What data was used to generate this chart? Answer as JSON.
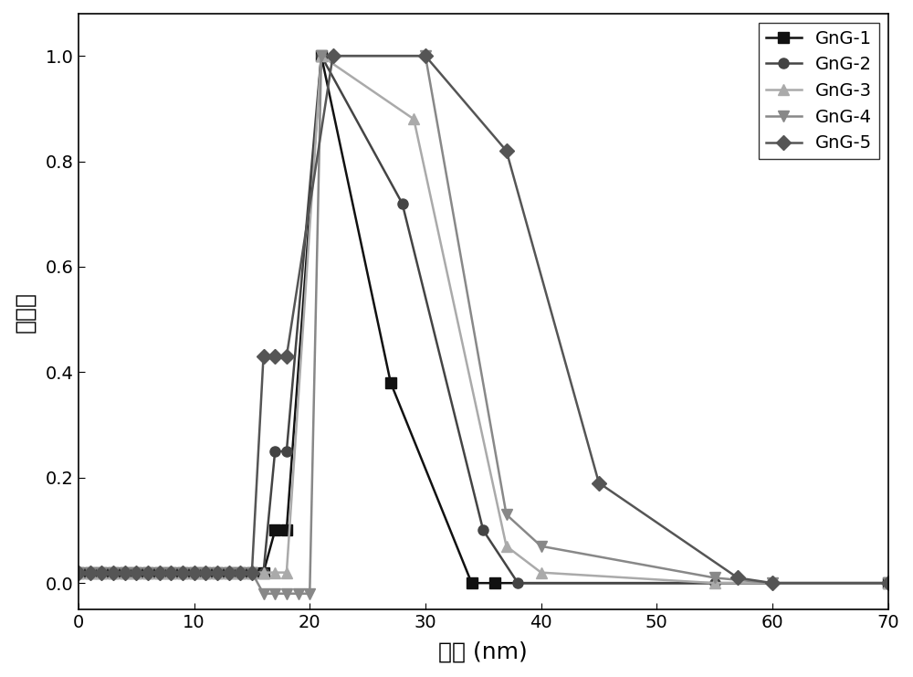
{
  "title": "",
  "xlabel": "半径 (nm)",
  "ylabel": "相对値",
  "xlim": [
    0,
    70
  ],
  "ylim": [
    -0.05,
    1.08
  ],
  "xticks": [
    0,
    10,
    20,
    30,
    40,
    50,
    60,
    70
  ],
  "yticks": [
    0.0,
    0.2,
    0.4,
    0.6,
    0.8,
    1.0
  ],
  "series": [
    {
      "name": "GnG-1",
      "color": "#111111",
      "marker": "s",
      "markersize": 8,
      "linewidth": 1.8,
      "x": [
        0,
        1,
        2,
        3,
        4,
        5,
        6,
        7,
        8,
        9,
        10,
        11,
        12,
        13,
        14,
        15,
        16,
        17,
        18,
        21,
        27,
        34,
        36,
        70
      ],
      "y": [
        0.02,
        0.02,
        0.02,
        0.02,
        0.02,
        0.02,
        0.02,
        0.02,
        0.02,
        0.02,
        0.02,
        0.02,
        0.02,
        0.02,
        0.02,
        0.02,
        0.02,
        0.1,
        0.1,
        1.0,
        0.38,
        0.0,
        0.0,
        0.0
      ]
    },
    {
      "name": "GnG-2",
      "color": "#444444",
      "marker": "o",
      "markersize": 8,
      "linewidth": 1.8,
      "x": [
        0,
        1,
        2,
        3,
        4,
        5,
        6,
        7,
        8,
        9,
        10,
        11,
        12,
        13,
        14,
        15,
        16,
        17,
        18,
        21,
        28,
        35,
        38,
        55,
        70
      ],
      "y": [
        0.02,
        0.02,
        0.02,
        0.02,
        0.02,
        0.02,
        0.02,
        0.02,
        0.02,
        0.02,
        0.02,
        0.02,
        0.02,
        0.02,
        0.02,
        0.02,
        0.02,
        0.25,
        0.25,
        1.0,
        0.72,
        0.1,
        0.0,
        0.0,
        0.0
      ]
    },
    {
      "name": "GnG-3",
      "color": "#aaaaaa",
      "marker": "^",
      "markersize": 8,
      "linewidth": 1.8,
      "x": [
        0,
        1,
        2,
        3,
        4,
        5,
        6,
        7,
        8,
        9,
        10,
        11,
        12,
        13,
        14,
        15,
        16,
        17,
        18,
        21,
        29,
        37,
        40,
        55,
        70
      ],
      "y": [
        0.02,
        0.02,
        0.02,
        0.02,
        0.02,
        0.02,
        0.02,
        0.02,
        0.02,
        0.02,
        0.02,
        0.02,
        0.02,
        0.02,
        0.02,
        0.02,
        0.02,
        0.02,
        0.02,
        1.0,
        0.88,
        0.07,
        0.02,
        0.0,
        0.0
      ]
    },
    {
      "name": "GnG-4",
      "color": "#888888",
      "marker": "v",
      "markersize": 8,
      "linewidth": 1.8,
      "x": [
        0,
        1,
        2,
        3,
        4,
        5,
        6,
        7,
        8,
        9,
        10,
        11,
        12,
        13,
        14,
        15,
        16,
        17,
        18,
        19,
        20,
        21,
        30,
        37,
        40,
        55,
        60,
        70
      ],
      "y": [
        0.02,
        0.02,
        0.02,
        0.02,
        0.02,
        0.02,
        0.02,
        0.02,
        0.02,
        0.02,
        0.02,
        0.02,
        0.02,
        0.02,
        0.02,
        0.02,
        -0.02,
        -0.02,
        -0.02,
        -0.02,
        -0.02,
        1.0,
        1.0,
        0.13,
        0.07,
        0.01,
        0.0,
        0.0
      ]
    },
    {
      "name": "GnG-5",
      "color": "#555555",
      "marker": "D",
      "markersize": 8,
      "linewidth": 1.8,
      "x": [
        0,
        1,
        2,
        3,
        4,
        5,
        6,
        7,
        8,
        9,
        10,
        11,
        12,
        13,
        14,
        15,
        16,
        17,
        18,
        22,
        30,
        37,
        45,
        57,
        60,
        70
      ],
      "y": [
        0.02,
        0.02,
        0.02,
        0.02,
        0.02,
        0.02,
        0.02,
        0.02,
        0.02,
        0.02,
        0.02,
        0.02,
        0.02,
        0.02,
        0.02,
        0.02,
        0.43,
        0.43,
        0.43,
        1.0,
        1.0,
        0.82,
        0.19,
        0.01,
        0.0,
        0.0
      ]
    }
  ],
  "legend_loc": "upper right",
  "background_color": "#ffffff",
  "figure_facecolor": "#ffffff"
}
